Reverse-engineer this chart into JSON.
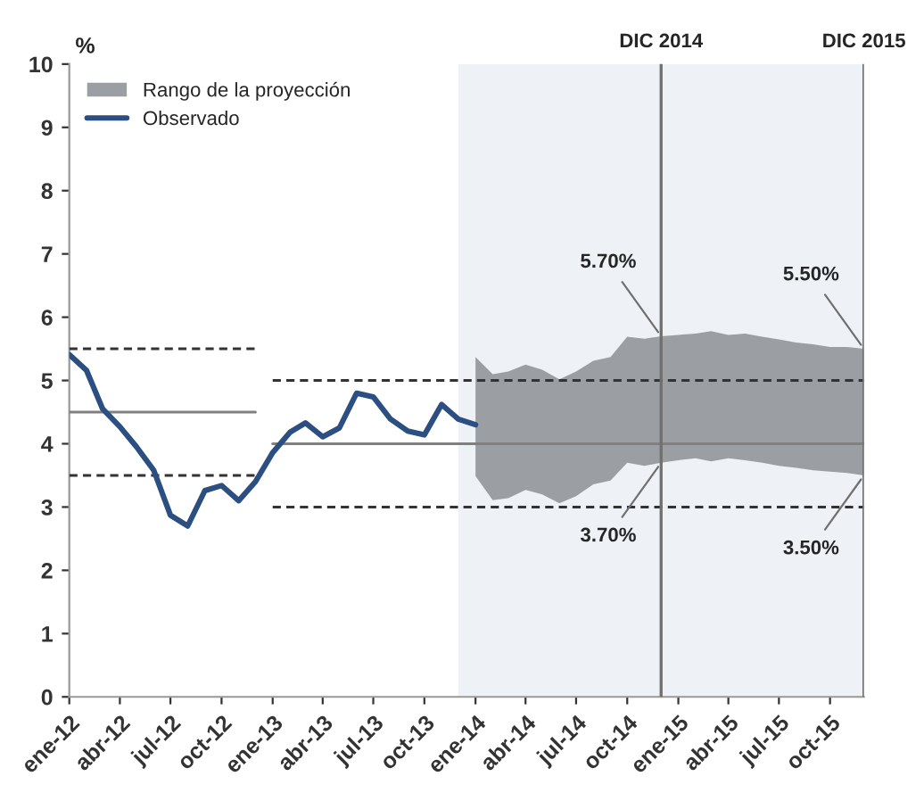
{
  "chart_data": {
    "type": "line",
    "ylabel": "%",
    "x": [
      "2012-01",
      "2012-02",
      "2012-03",
      "2012-04",
      "2012-05",
      "2012-06",
      "2012-07",
      "2012-08",
      "2012-09",
      "2012-10",
      "2012-11",
      "2012-12",
      "2013-01",
      "2013-02",
      "2013-03",
      "2013-04",
      "2013-05",
      "2013-06",
      "2013-07",
      "2013-08",
      "2013-09",
      "2013-10",
      "2013-11",
      "2013-12",
      "2014-01"
    ],
    "series": [
      {
        "name": "Rango de la proyección",
        "type": "area",
        "color": "#9b9fa4",
        "x": [
          "2014-01",
          "2014-02",
          "2014-03",
          "2014-04",
          "2014-05",
          "2014-06",
          "2014-07",
          "2014-08",
          "2014-09",
          "2014-10",
          "2014-11",
          "2014-12",
          "2015-01",
          "2015-02",
          "2015-03",
          "2015-04",
          "2015-05",
          "2015-06",
          "2015-07",
          "2015-08",
          "2015-09",
          "2015-10",
          "2015-11",
          "2015-12"
        ],
        "values": [
          null,
          null,
          null,
          null,
          null,
          null,
          null,
          null,
          null,
          null,
          null,
          null,
          null,
          null,
          null,
          null,
          null,
          null,
          null,
          null,
          null,
          null,
          null,
          null
        ],
        "lower": [
          3.49,
          3.11,
          3.14,
          3.27,
          3.2,
          3.06,
          3.17,
          3.36,
          3.42,
          3.7,
          3.65,
          3.7,
          3.74,
          3.77,
          3.72,
          3.77,
          3.74,
          3.7,
          3.65,
          3.62,
          3.58,
          3.56,
          3.54,
          3.5
        ],
        "upper": [
          5.37,
          5.1,
          5.14,
          5.25,
          5.17,
          5.02,
          5.14,
          5.31,
          5.37,
          5.69,
          5.66,
          5.7,
          5.72,
          5.74,
          5.78,
          5.72,
          5.74,
          5.69,
          5.65,
          5.6,
          5.57,
          5.53,
          5.53,
          5.5
        ]
      },
      {
        "name": "Observado",
        "color": "#2b4f80",
        "line_style": "solid",
        "values": [
          5.41,
          5.16,
          4.55,
          4.27,
          3.95,
          3.58,
          2.87,
          2.7,
          3.26,
          3.34,
          3.1,
          3.4,
          3.86,
          4.18,
          4.33,
          4.11,
          4.25,
          4.8,
          4.74,
          4.39,
          4.2,
          4.14,
          4.62,
          4.39,
          4.3
        ]
      },
      {
        "color": "#333333",
        "line_style": "dashed",
        "x": [
          "2012-01",
          "2012-12"
        ],
        "values": [
          5.5,
          5.5
        ]
      },
      {
        "color": "#808080",
        "line_style": "solid",
        "x": [
          "2012-01",
          "2012-12"
        ],
        "values": [
          4.5,
          4.5
        ]
      },
      {
        "color": "#333333",
        "line_style": "dashed",
        "x": [
          "2012-01",
          "2012-12"
        ],
        "values": [
          3.5,
          3.5
        ]
      },
      {
        "color": "#333333",
        "line_style": "dashed",
        "x": [
          "2013-01",
          "2015-12"
        ],
        "values": [
          5,
          5
        ]
      },
      {
        "color": "#808080",
        "line_style": "solid",
        "x": [
          "2013-01",
          "2015-12"
        ],
        "values": [
          4,
          4
        ]
      },
      {
        "color": "#333333",
        "line_style": "dashed",
        "x": [
          "2013-01",
          "2015-12"
        ],
        "values": [
          3,
          3
        ]
      }
    ],
    "xlim": [
      "2012-01",
      "2015-12"
    ],
    "xticks": [
      {
        "value": "2012-01",
        "label": "ene-12"
      },
      {
        "value": "2012-04",
        "label": "abr-12"
      },
      {
        "value": "2012-07",
        "label": "jul-12"
      },
      {
        "value": "2012-10",
        "label": "oct-12"
      },
      {
        "value": "2013-01",
        "label": "ene-13"
      },
      {
        "value": "2013-04",
        "label": "abr-13"
      },
      {
        "value": "2013-07",
        "label": "jul-13"
      },
      {
        "value": "2013-10",
        "label": "oct-13"
      },
      {
        "value": "2014-01",
        "label": "ene-14"
      },
      {
        "value": "2014-04",
        "label": "abr-14"
      },
      {
        "value": "2014-07",
        "label": "jul-14"
      },
      {
        "value": "2014-10",
        "label": "oct-14"
      },
      {
        "value": "2015-01",
        "label": "ene-15"
      },
      {
        "value": "2015-04",
        "label": "abr-15"
      },
      {
        "value": "2015-07",
        "label": "jul-15"
      },
      {
        "value": "2015-10",
        "label": "oct-15"
      }
    ],
    "ylim": [
      0,
      10
    ],
    "yticks": [
      0,
      1,
      2,
      3,
      4,
      5,
      6,
      7,
      8,
      9,
      10
    ],
    "ref_lines": [
      {
        "axis": "x",
        "value": "2014-12",
        "label": "DIC 2014",
        "color": "#707070"
      },
      {
        "axis": "x",
        "value": "2015-12",
        "label": "DIC 2015",
        "color": "#707070"
      }
    ],
    "bands": [
      {
        "axis": "x",
        "from": "2013-12",
        "to": "2015-12",
        "color": "#eef2f7"
      }
    ],
    "annotations": [
      {
        "text": "5.70%",
        "x": "2014-12",
        "y": 5.7
      },
      {
        "text": "3.70%",
        "x": "2014-12",
        "y": 3.7
      },
      {
        "text": "5.50%",
        "x": "2015-12",
        "y": 5.5
      },
      {
        "text": "3.50%",
        "x": "2015-12",
        "y": 3.5
      }
    ],
    "grid": false,
    "legend": "top left"
  }
}
